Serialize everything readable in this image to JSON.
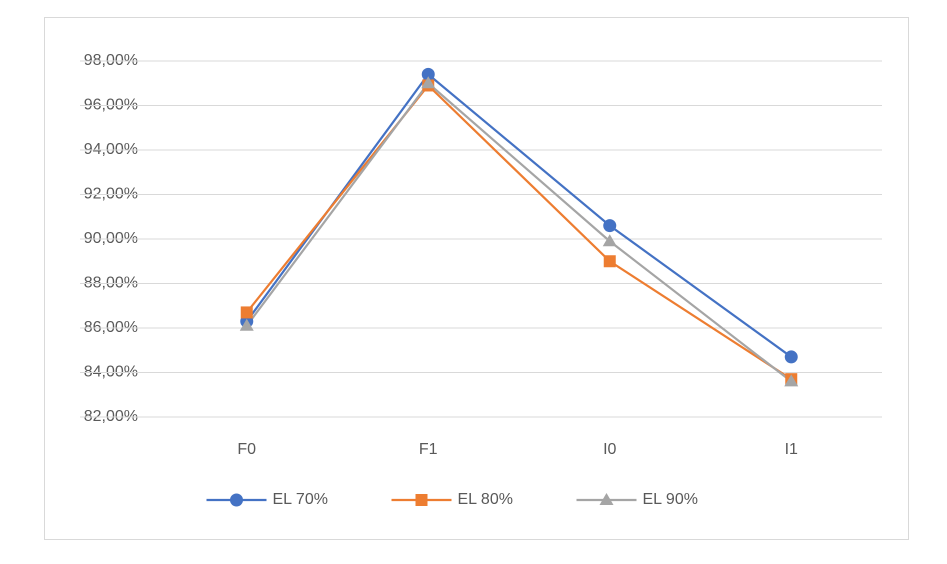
{
  "chart_data": {
    "type": "line",
    "categories": [
      "F0",
      "F1",
      "I0",
      "I1"
    ],
    "series": [
      {
        "name": "EL 70%",
        "color": "#4472c4",
        "marker": "circle",
        "values": [
          86.3,
          97.4,
          90.6,
          84.7
        ]
      },
      {
        "name": "EL 80%",
        "color": "#ed7d31",
        "marker": "square",
        "values": [
          86.7,
          96.9,
          89.0,
          83.7
        ]
      },
      {
        "name": "EL 90%",
        "color": "#a5a5a5",
        "marker": "triangle",
        "values": [
          86.1,
          97.0,
          89.9,
          83.6
        ]
      }
    ],
    "ylim": [
      82,
      98
    ],
    "yticks": [
      {
        "value": 82,
        "label": "82,00%"
      },
      {
        "value": 84,
        "label": "84,00%"
      },
      {
        "value": 86,
        "label": "86,00%"
      },
      {
        "value": 88,
        "label": "88,00%"
      },
      {
        "value": 90,
        "label": "90,00%"
      },
      {
        "value": 92,
        "label": "92,00%"
      },
      {
        "value": 94,
        "label": "94,00%"
      },
      {
        "value": 96,
        "label": "96,00%"
      },
      {
        "value": 98,
        "label": "98,00%"
      }
    ],
    "grid": true,
    "legend": "bottom"
  }
}
